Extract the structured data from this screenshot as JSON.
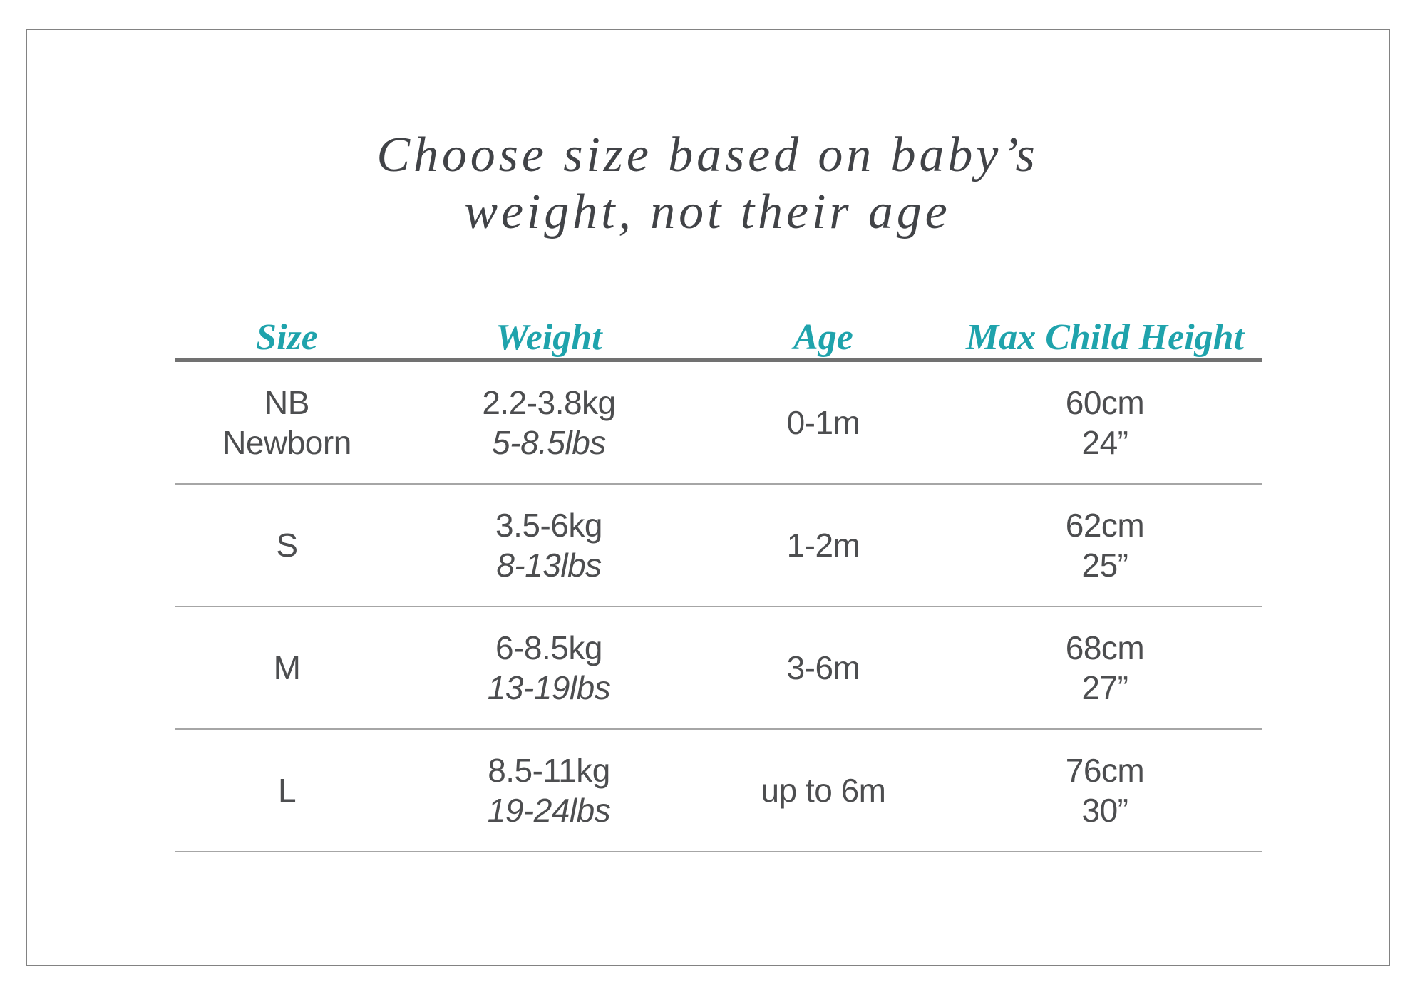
{
  "title": {
    "line1": "Choose size based on baby’s",
    "line2": "weight, not their age"
  },
  "table": {
    "headers": [
      "Size",
      "Weight",
      "Age",
      "Max Child Height"
    ],
    "rows": [
      {
        "size": [
          "NB",
          "Newborn"
        ],
        "weight": [
          "2.2-3.8kg",
          "5-8.5lbs"
        ],
        "age": "0-1m",
        "height": [
          "60cm",
          "24”"
        ]
      },
      {
        "size": [
          "S"
        ],
        "weight": [
          "3.5-6kg",
          "8-13lbs"
        ],
        "age": "1-2m",
        "height": [
          "62cm",
          "25”"
        ]
      },
      {
        "size": [
          "M"
        ],
        "weight": [
          "6-8.5kg",
          "13-19lbs"
        ],
        "age": "3-6m",
        "height": [
          "68cm",
          "27”"
        ]
      },
      {
        "size": [
          "L"
        ],
        "weight": [
          "8.5-11kg",
          "19-24lbs"
        ],
        "age": "up to 6m",
        "height": [
          "76cm",
          "30”"
        ]
      }
    ]
  },
  "colors": {
    "accent_teal": "#1FA3AC",
    "body_text": "#4D4E50",
    "title_text": "#414347",
    "header_rule": "#717171",
    "row_rule": "#A6A6A6",
    "frame_border": "#828282"
  },
  "chart_data": {
    "type": "table",
    "title": "Choose size based on baby’s weight, not their age",
    "columns": [
      "Size",
      "Weight",
      "Age",
      "Max Child Height"
    ],
    "rows": [
      [
        "NB Newborn",
        "2.2-3.8kg / 5-8.5lbs",
        "0-1m",
        "60cm / 24”"
      ],
      [
        "S",
        "3.5-6kg / 8-13lbs",
        "1-2m",
        "62cm / 25”"
      ],
      [
        "M",
        "6-8.5kg / 13-19lbs",
        "3-6m",
        "68cm / 27”"
      ],
      [
        "L",
        "8.5-11kg / 19-24lbs",
        "up to 6m",
        "76cm / 30”"
      ]
    ]
  }
}
